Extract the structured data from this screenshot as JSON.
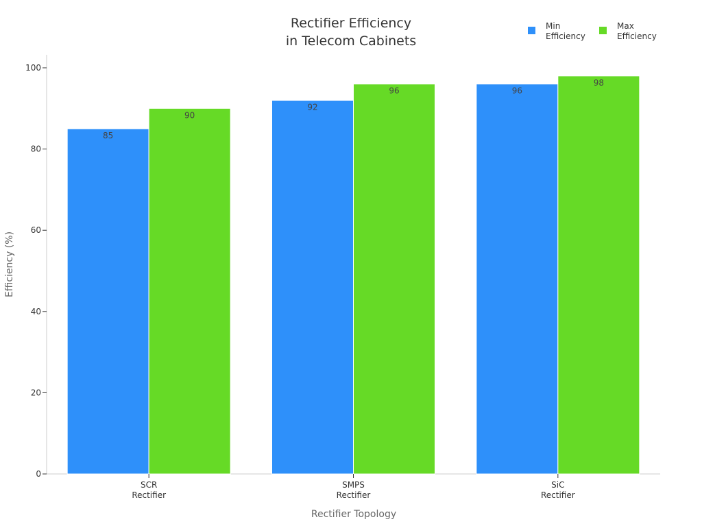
{
  "chart_data": {
    "type": "bar",
    "title": [
      "Rectifier Efficiency",
      "in Telecom Cabinets"
    ],
    "xlabel": "Rectifier Topology",
    "ylabel": "Efficiency (%)",
    "ylim": [
      0,
      100
    ],
    "yticks": [
      "0",
      "20",
      "40",
      "60",
      "80",
      "100"
    ],
    "categories": [
      [
        "SCR",
        "Rectifier"
      ],
      [
        "SMPS",
        "Rectifier"
      ],
      [
        "SiC",
        "Rectifier"
      ]
    ],
    "series": [
      {
        "name": [
          "Min",
          "Efficiency"
        ],
        "color": "#2e90fa",
        "values": [
          85,
          92,
          96
        ]
      },
      {
        "name": [
          "Max",
          "Efficiency"
        ],
        "color": "#66da26",
        "values": [
          90,
          96,
          98
        ]
      }
    ],
    "legend_position": "top-right",
    "grid": false
  }
}
